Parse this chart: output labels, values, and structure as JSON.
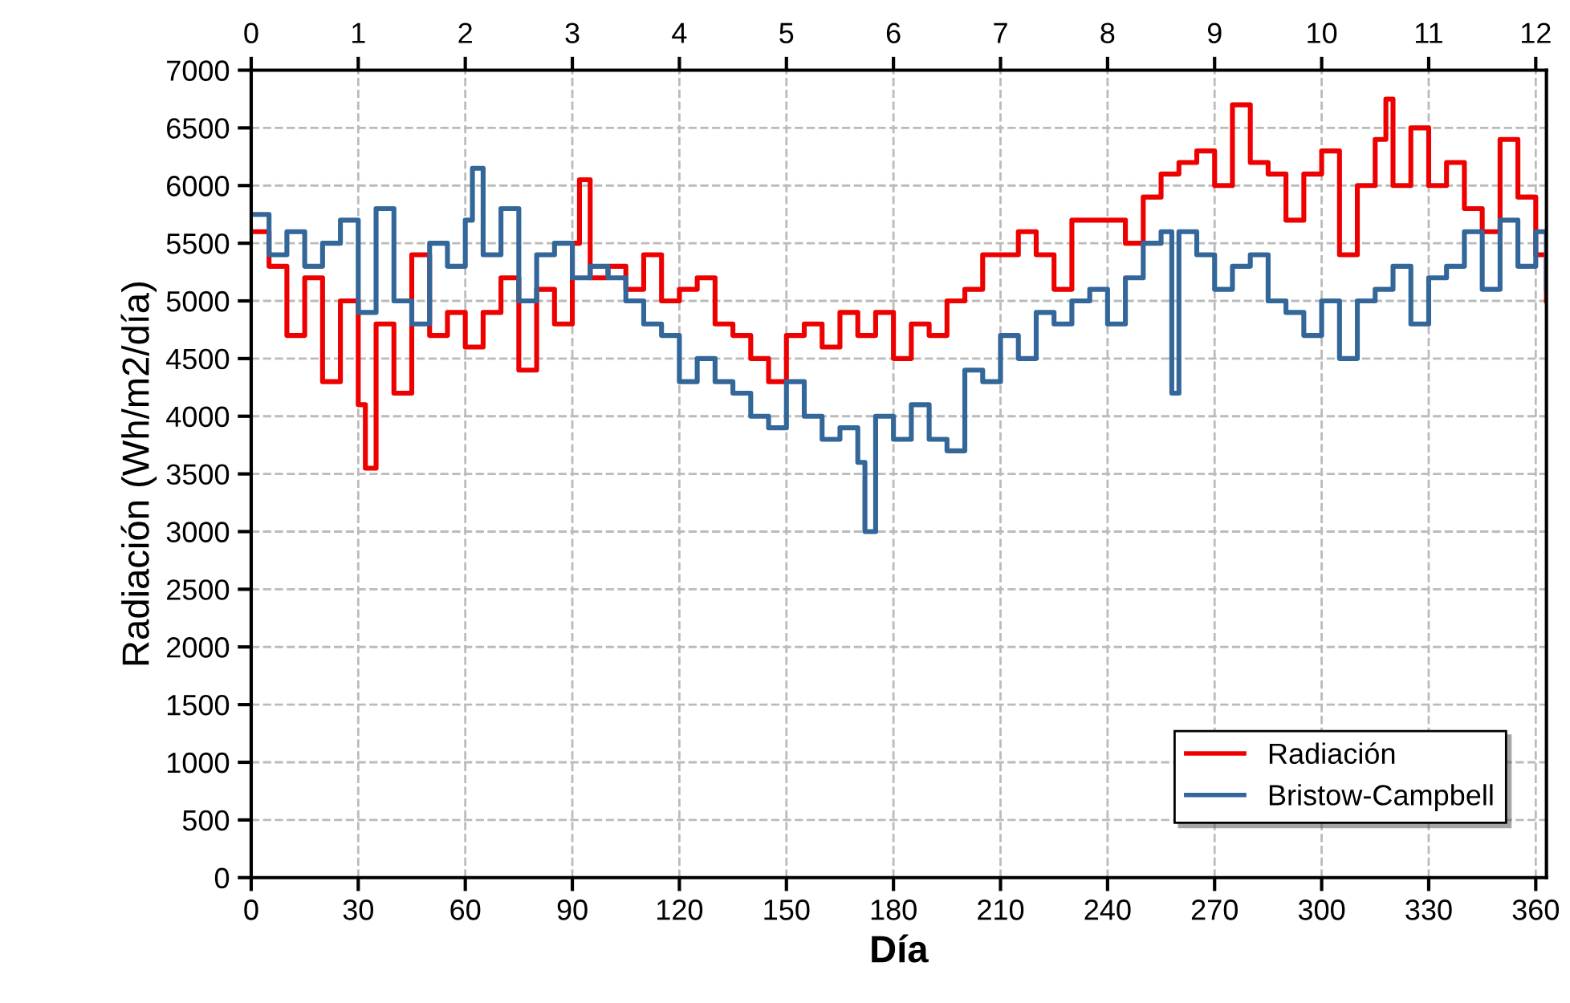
{
  "chart_data": {
    "type": "step",
    "xlabel": "Día",
    "ylabel": "Radiación (Wh/m2/día)",
    "xlim": [
      0,
      363
    ],
    "xticks": [
      0,
      30,
      60,
      90,
      120,
      150,
      180,
      210,
      240,
      270,
      300,
      330,
      360
    ],
    "x2lim": [
      0,
      12.1
    ],
    "x2ticks": [
      0,
      1,
      2,
      3,
      4,
      5,
      6,
      7,
      8,
      9,
      10,
      11,
      12
    ],
    "ylim": [
      0,
      7000
    ],
    "yticks": [
      0,
      500,
      1000,
      1500,
      2000,
      2500,
      3000,
      3500,
      4000,
      4500,
      5000,
      5500,
      6000,
      6500,
      7000
    ],
    "grid": true,
    "legend": "bottom right",
    "line_style": "solid",
    "series": [
      {
        "name": "Radiación",
        "color": "#ee0000",
        "x": [
          0,
          5,
          10,
          15,
          20,
          25,
          30,
          32,
          35,
          40,
          45,
          50,
          55,
          60,
          65,
          70,
          75,
          80,
          85,
          90,
          92,
          95,
          100,
          105,
          110,
          115,
          120,
          125,
          130,
          135,
          140,
          145,
          150,
          155,
          160,
          165,
          170,
          175,
          180,
          185,
          190,
          195,
          200,
          205,
          210,
          215,
          220,
          225,
          230,
          235,
          240,
          245,
          250,
          255,
          260,
          265,
          270,
          275,
          280,
          285,
          290,
          295,
          300,
          305,
          310,
          315,
          318,
          320,
          325,
          330,
          335,
          340,
          345,
          350,
          355,
          360,
          363
        ],
        "values": [
          5600,
          5300,
          4700,
          5200,
          4300,
          5000,
          4100,
          3550,
          4800,
          4200,
          5400,
          4700,
          4900,
          4600,
          4900,
          5200,
          4400,
          5100,
          4800,
          5500,
          6050,
          5200,
          5300,
          5100,
          5400,
          5000,
          5100,
          5200,
          4800,
          4700,
          4500,
          4300,
          4700,
          4800,
          4600,
          4900,
          4700,
          4900,
          4500,
          4800,
          4700,
          5000,
          5100,
          5400,
          5400,
          5600,
          5400,
          5100,
          5700,
          5700,
          5700,
          5500,
          5900,
          6100,
          6200,
          6300,
          6000,
          6700,
          6200,
          6100,
          5700,
          6100,
          6300,
          5400,
          6000,
          6400,
          6750,
          6000,
          6500,
          6000,
          6200,
          5800,
          5600,
          6400,
          5900,
          5400,
          5000
        ]
      },
      {
        "name": "Bristow-Campbell",
        "color": "#336699",
        "x": [
          0,
          5,
          10,
          15,
          20,
          25,
          30,
          35,
          40,
          45,
          50,
          55,
          60,
          62,
          65,
          70,
          75,
          80,
          85,
          90,
          95,
          100,
          105,
          110,
          115,
          120,
          125,
          130,
          135,
          140,
          145,
          150,
          155,
          160,
          165,
          170,
          172,
          175,
          180,
          185,
          190,
          195,
          200,
          205,
          210,
          215,
          220,
          225,
          230,
          235,
          240,
          245,
          250,
          255,
          258,
          260,
          265,
          270,
          275,
          280,
          285,
          290,
          295,
          300,
          305,
          310,
          315,
          320,
          325,
          330,
          335,
          340,
          345,
          350,
          355,
          360,
          363
        ],
        "values": [
          5750,
          5400,
          5600,
          5300,
          5500,
          5700,
          4900,
          5800,
          5000,
          4800,
          5500,
          5300,
          5700,
          6150,
          5400,
          5800,
          5000,
          5400,
          5500,
          5200,
          5300,
          5200,
          5000,
          4800,
          4700,
          4300,
          4500,
          4300,
          4200,
          4000,
          3900,
          4300,
          4000,
          3800,
          3900,
          3600,
          3000,
          4000,
          3800,
          4100,
          3800,
          3700,
          4400,
          4300,
          4700,
          4500,
          4900,
          4800,
          5000,
          5100,
          4800,
          5200,
          5500,
          5600,
          4200,
          5600,
          5400,
          5100,
          5300,
          5400,
          5000,
          4900,
          4700,
          5000,
          4500,
          5000,
          5100,
          5300,
          4800,
          5200,
          5300,
          5600,
          5100,
          5700,
          5300,
          5600,
          5100
        ]
      }
    ]
  }
}
